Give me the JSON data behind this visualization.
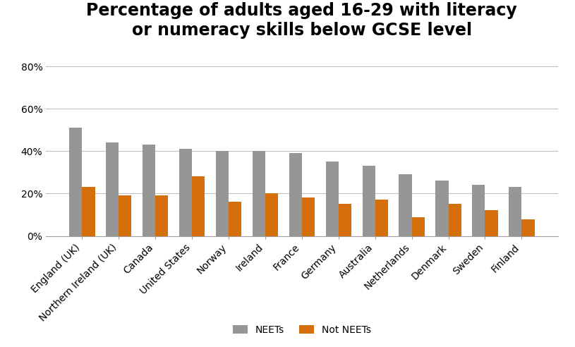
{
  "title": "Percentage of adults aged 16-29 with literacy\nor numeracy skills below GCSE level",
  "categories": [
    "England (UK)",
    "Northern Ireland (UK)",
    "Canada",
    "United States",
    "Norway",
    "Ireland",
    "France",
    "Germany",
    "Australia",
    "Netherlands",
    "Denmark",
    "Sweden",
    "Finland"
  ],
  "neets": [
    51,
    44,
    43,
    41,
    40,
    40,
    39,
    35,
    33,
    29,
    26,
    24,
    23
  ],
  "not_neets": [
    23,
    19,
    19,
    28,
    16,
    20,
    18,
    15,
    17,
    9,
    15,
    12,
    8
  ],
  "neets_color": "#969696",
  "not_neets_color": "#d46f0c",
  "ylim": [
    0,
    90
  ],
  "yticks": [
    0,
    20,
    40,
    60,
    80
  ],
  "ytick_labels": [
    "0%",
    "20%",
    "40%",
    "60%",
    "80%"
  ],
  "legend_labels": [
    "NEETs",
    "Not NEETs"
  ],
  "bar_width": 0.35,
  "title_fontsize": 17,
  "tick_fontsize": 10,
  "legend_fontsize": 10,
  "background_color": "#ffffff",
  "grid_color": "#c0c0c0"
}
